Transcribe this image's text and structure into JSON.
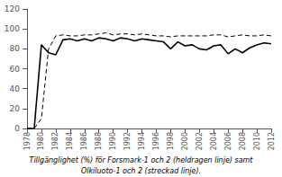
{
  "chart_data": {
    "type": "line",
    "x": [
      1978,
      1979,
      1980,
      1981,
      1982,
      1983,
      1984,
      1985,
      1986,
      1987,
      1988,
      1989,
      1990,
      1991,
      1992,
      1993,
      1994,
      1995,
      1996,
      1997,
      1998,
      1999,
      2000,
      2001,
      2002,
      2003,
      2004,
      2005,
      2006,
      2007,
      2008,
      2009,
      2010,
      2011,
      2012
    ],
    "series": [
      {
        "color": "#000000",
        "line_style": "solid",
        "values": [
          0,
          0,
          84,
          76,
          74,
          89,
          90,
          88,
          90,
          88,
          91,
          90,
          88,
          91,
          90,
          88,
          90,
          89,
          88,
          87,
          80,
          87,
          83,
          84,
          80,
          79,
          83,
          84,
          75,
          80,
          76,
          81,
          84,
          86,
          85
        ]
      },
      {
        "color": "#000000",
        "line_style": "dashed",
        "values": [
          0,
          0,
          10,
          80,
          93,
          94,
          93,
          93,
          94,
          94,
          95,
          96,
          94,
          95,
          95,
          94,
          95,
          94,
          93,
          93,
          92,
          93,
          93,
          93,
          93,
          93,
          94,
          94,
          92,
          93,
          94,
          93,
          93,
          94,
          93
        ]
      }
    ],
    "xlim": [
      1978,
      2012
    ],
    "xticks": [
      1978,
      1980,
      1982,
      1984,
      1986,
      1988,
      1990,
      1992,
      1994,
      1996,
      1998,
      2000,
      2002,
      2004,
      2006,
      2008,
      2010,
      2012
    ],
    "ylim": [
      0,
      120
    ],
    "yticks": [
      0,
      20,
      40,
      60,
      80,
      100,
      120
    ],
    "annotations": [
      "Tillgänglighet (%) för Forsmark-1 och 2 (heldragen linje) samt",
      "Olkiluoto-1 och 2 (streckad linje)."
    ],
    "grid": false
  }
}
